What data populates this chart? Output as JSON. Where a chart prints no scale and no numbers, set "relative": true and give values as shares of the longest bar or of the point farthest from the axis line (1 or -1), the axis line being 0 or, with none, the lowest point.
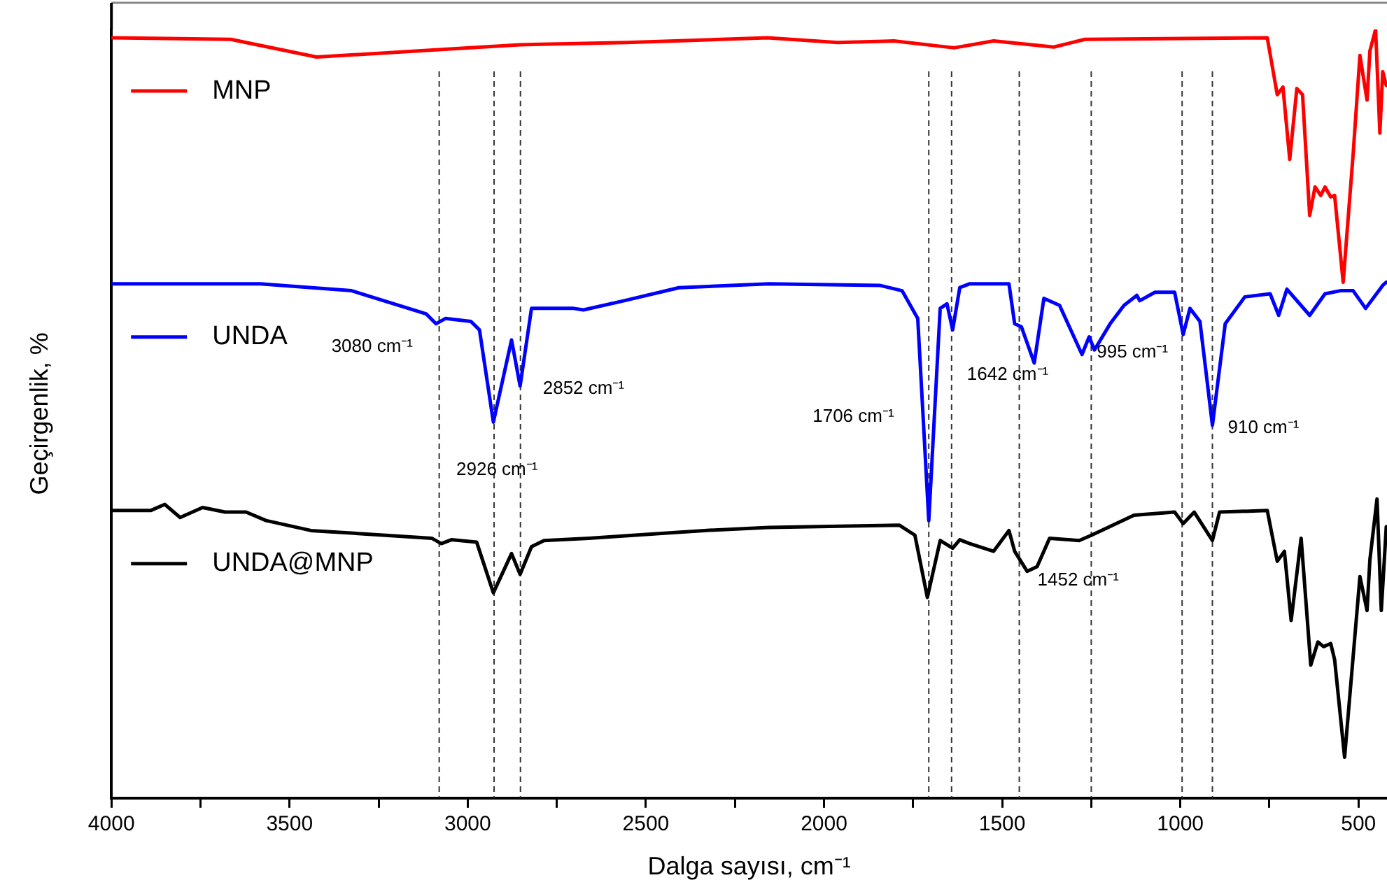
{
  "chart_data": {
    "type": "line",
    "relative": true,
    "xlabel": "Dalga sayısı, cm⁻¹",
    "ylabel": "Geçirgenlik, %",
    "xlim": [
      4000,
      420
    ],
    "xticks": [
      4000,
      {
        "value": 3750,
        "label": null
      },
      3500,
      {
        "value": 3250,
        "label": null
      },
      3000,
      {
        "value": 2750,
        "label": null
      },
      2500,
      {
        "value": 2250,
        "label": null
      },
      2000,
      {
        "value": 1750,
        "label": null
      },
      1500,
      {
        "value": 1250,
        "label": null
      },
      1000,
      {
        "value": 750,
        "label": null
      },
      500
    ],
    "grid": false,
    "marker": "none",
    "line_style": "solid",
    "legend": "left",
    "series": [
      {
        "name": "MNP",
        "color": "#ff0000",
        "x": [
          4000,
          3665,
          3424,
          3066,
          2853,
          2553,
          2159,
          1962,
          1804,
          1635,
          1524,
          1355,
          1268,
          756,
          728,
          712,
          693,
          673,
          657,
          637,
          622,
          606,
          594,
          578,
          567,
          543,
          515,
          496,
          476,
          468,
          452,
          440,
          432,
          422
        ],
        "values": [
          0.989,
          0.987,
          0.964,
          0.974,
          0.98,
          0.983,
          0.989,
          0.983,
          0.985,
          0.976,
          0.985,
          0.977,
          0.987,
          0.989,
          0.915,
          0.925,
          0.831,
          0.923,
          0.915,
          0.758,
          0.795,
          0.784,
          0.795,
          0.782,
          0.784,
          0.671,
          0.838,
          0.966,
          0.908,
          0.972,
          1,
          0.865,
          0.945,
          0.927
        ]
      },
      {
        "name": "UNDA",
        "color": "#0000ff",
        "x": [
          4000,
          3582,
          3326,
          3117,
          3089,
          3062,
          2991,
          2967,
          2928,
          2877,
          2853,
          2821,
          2703,
          2675,
          2561,
          2407,
          2155,
          1844,
          1781,
          1737,
          1706,
          1674,
          1655,
          1639,
          1619,
          1591,
          1481,
          1465,
          1446,
          1410,
          1383,
          1339,
          1276,
          1256,
          1241,
          1197,
          1158,
          1122,
          1114,
          1071,
          1016,
          992,
          973,
          945,
          910,
          874,
          819,
          748,
          724,
          701,
          637,
          594,
          551,
          515,
          480,
          432,
          422
        ],
        "values": [
          0.669,
          0.669,
          0.66,
          0.63,
          0.617,
          0.624,
          0.62,
          0.609,
          0.489,
          0.596,
          0.536,
          0.637,
          0.637,
          0.635,
          0.647,
          0.664,
          0.669,
          0.667,
          0.66,
          0.624,
          0.361,
          0.637,
          0.643,
          0.609,
          0.664,
          0.669,
          0.669,
          0.617,
          0.613,
          0.566,
          0.65,
          0.641,
          0.577,
          0.6,
          0.583,
          0.617,
          0.641,
          0.654,
          0.647,
          0.658,
          0.658,
          0.603,
          0.637,
          0.62,
          0.485,
          0.617,
          0.652,
          0.656,
          0.628,
          0.662,
          0.628,
          0.656,
          0.66,
          0.66,
          0.637,
          0.667,
          0.671
        ]
      },
      {
        "name": "UNDA@MNP",
        "color": "#000000",
        "x": [
          4000,
          3890,
          3850,
          3807,
          3744,
          3681,
          3622,
          3566,
          3440,
          3101,
          3074,
          3046,
          2975,
          2928,
          2877,
          2853,
          2821,
          2786,
          2660,
          2336,
          2155,
          1789,
          1745,
          1710,
          1674,
          1639,
          1619,
          1591,
          1524,
          1481,
          1465,
          1430,
          1402,
          1367,
          1284,
          1249,
          1130,
          1016,
          992,
          961,
          910,
          890,
          756,
          728,
          708,
          689,
          661,
          634,
          614,
          598,
          578,
          567,
          539,
          496,
          476,
          468,
          448,
          436,
          422
        ],
        "values": [
          0.374,
          0.374,
          0.382,
          0.365,
          0.378,
          0.372,
          0.372,
          0.361,
          0.348,
          0.338,
          0.331,
          0.336,
          0.333,
          0.267,
          0.318,
          0.291,
          0.327,
          0.335,
          0.338,
          0.348,
          0.352,
          0.355,
          0.342,
          0.261,
          0.335,
          0.325,
          0.336,
          0.331,
          0.321,
          0.348,
          0.321,
          0.295,
          0.301,
          0.338,
          0.335,
          0.342,
          0.368,
          0.372,
          0.357,
          0.372,
          0.335,
          0.372,
          0.374,
          0.308,
          0.321,
          0.231,
          0.338,
          0.173,
          0.203,
          0.197,
          0.201,
          0.18,
          0.053,
          0.288,
          0.244,
          0.31,
          0.389,
          0.244,
          0.353
        ]
      }
    ],
    "ref_lines": [
      {
        "axis": "x",
        "value": 3080,
        "label": "3080 cm⁻¹",
        "line_style": "dashed",
        "color": "#333333"
      },
      {
        "axis": "x",
        "value": 2926,
        "label": "2926 cm⁻¹",
        "line_style": "dashed",
        "color": "#333333"
      },
      {
        "axis": "x",
        "value": 2852,
        "label": "2852 cm⁻¹",
        "line_style": "dashed",
        "color": "#333333"
      },
      {
        "axis": "x",
        "value": 1706,
        "label": "1706 cm⁻¹",
        "line_style": "dashed",
        "color": "#333333"
      },
      {
        "axis": "x",
        "value": 1642,
        "label": "1642 cm⁻¹",
        "line_style": "dashed",
        "color": "#333333"
      },
      {
        "axis": "x",
        "value": 1452,
        "label": "1452 cm⁻¹",
        "line_style": "dashed",
        "color": "#333333"
      },
      {
        "axis": "x",
        "value": 1250,
        "line_style": "dashed",
        "color": "#333333"
      },
      {
        "axis": "x",
        "value": 995,
        "label": "995 cm⁻¹",
        "line_style": "dashed",
        "color": "#333333"
      },
      {
        "axis": "x",
        "value": 910,
        "label": "910 cm⁻¹",
        "line_style": "dashed",
        "color": "#333333"
      }
    ]
  }
}
